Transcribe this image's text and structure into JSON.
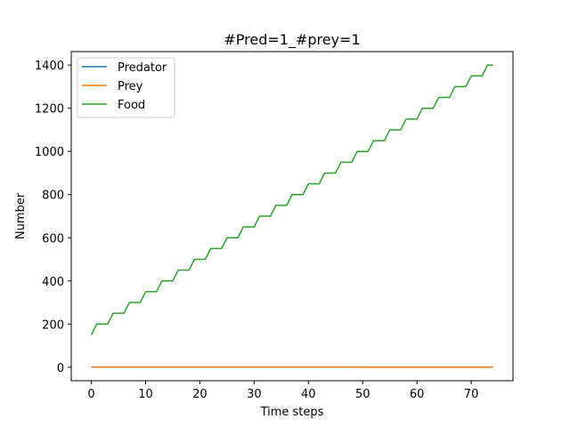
{
  "chart_data": {
    "type": "line",
    "title": "#Pred=1_#prey=1",
    "xlabel": "Time steps",
    "ylabel": "Number",
    "xlim": [
      -3.7,
      77.7
    ],
    "ylim": [
      -62.5,
      1462.5
    ],
    "xticks": [
      0,
      10,
      20,
      30,
      40,
      50,
      60,
      70
    ],
    "yticks": [
      0,
      200,
      400,
      600,
      800,
      1000,
      1200,
      1400
    ],
    "grid": false,
    "legend_position": "top-left",
    "x_start": 0,
    "x_end": 74,
    "series": [
      {
        "name": "Predator",
        "color": "#1f77b4",
        "values": [
          1,
          1,
          1,
          1,
          1,
          1,
          1,
          1,
          1,
          1,
          1,
          1,
          1,
          1,
          1,
          1,
          1,
          1,
          1,
          1,
          1,
          1,
          1,
          1,
          1,
          1,
          1,
          1,
          1,
          1,
          1,
          1,
          1,
          1,
          1,
          1,
          1,
          1,
          1,
          1,
          1,
          1,
          1,
          1,
          1,
          1,
          1,
          1,
          1,
          1,
          1,
          1,
          1,
          1,
          1,
          1,
          1,
          1,
          1,
          1,
          1,
          1,
          1,
          1,
          1,
          1,
          1,
          1,
          1,
          1,
          1,
          1,
          1,
          1,
          1
        ]
      },
      {
        "name": "Prey",
        "color": "#ff7f0e",
        "values": [
          1,
          1,
          1,
          1,
          1,
          1,
          1,
          1,
          1,
          1,
          1,
          1,
          1,
          1,
          1,
          1,
          1,
          1,
          1,
          1,
          1,
          1,
          1,
          1,
          1,
          1,
          1,
          1,
          1,
          1,
          1,
          1,
          1,
          1,
          1,
          1,
          1,
          1,
          1,
          1,
          1,
          1,
          1,
          1,
          1,
          1,
          1,
          1,
          1,
          0,
          0,
          0,
          0,
          0,
          0,
          0,
          0,
          0,
          0,
          0,
          0,
          0,
          0,
          0,
          0,
          0,
          0,
          0,
          0,
          0,
          0,
          0,
          0,
          0,
          0
        ]
      },
      {
        "name": "Food",
        "color": "#2ca02c",
        "values": [
          150,
          200,
          200,
          200,
          250,
          250,
          250,
          300,
          300,
          300,
          350,
          350,
          350,
          400,
          400,
          400,
          450,
          450,
          450,
          500,
          500,
          500,
          550,
          550,
          550,
          600,
          600,
          600,
          650,
          650,
          650,
          700,
          700,
          700,
          750,
          750,
          750,
          800,
          800,
          800,
          850,
          850,
          850,
          900,
          900,
          900,
          950,
          950,
          950,
          1000,
          1000,
          1000,
          1050,
          1050,
          1050,
          1100,
          1100,
          1100,
          1150,
          1150,
          1150,
          1200,
          1200,
          1200,
          1250,
          1250,
          1250,
          1300,
          1300,
          1300,
          1350,
          1350,
          1350,
          1400,
          1400
        ]
      }
    ]
  }
}
